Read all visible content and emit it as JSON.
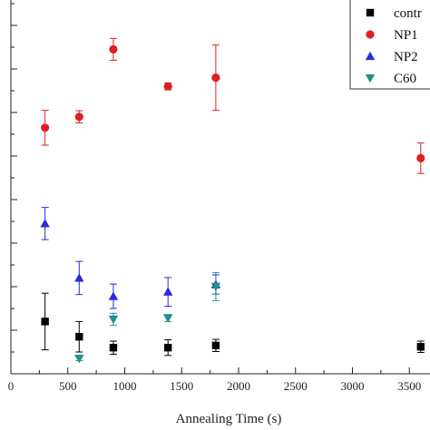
{
  "chart_data": {
    "type": "scatter",
    "xlabel": "Annealing Time (s)",
    "ylabel": "",
    "title": "",
    "xlim": [
      0,
      3650
    ],
    "x_ticks": [
      "0",
      "500",
      "1000",
      "1500",
      "2000",
      "2500",
      "3000",
      "3500"
    ],
    "x_tick_values": [
      0,
      500,
      1000,
      1500,
      2000,
      2500,
      3000,
      3500
    ],
    "y_tick_count": 9,
    "legend_position": "top-right",
    "series": [
      {
        "name": "control",
        "legend_label": "contr",
        "marker": "square",
        "color": "#000000",
        "points": [
          {
            "x": 300,
            "y": 1.2,
            "err": 0.65
          },
          {
            "x": 600,
            "y": 0.85,
            "err": 0.35
          },
          {
            "x": 900,
            "y": 0.6,
            "err": 0.15
          },
          {
            "x": 1380,
            "y": 0.6,
            "err": 0.18
          },
          {
            "x": 1800,
            "y": 0.65,
            "err": 0.14
          },
          {
            "x": 3600,
            "y": 0.62,
            "err": 0.13
          }
        ]
      },
      {
        "name": "NP1",
        "legend_label": "NP1",
        "marker": "circle",
        "color": "#e02020",
        "points": [
          {
            "x": 300,
            "y": 5.65,
            "err": 0.4
          },
          {
            "x": 600,
            "y": 5.9,
            "err": 0.14
          },
          {
            "x": 900,
            "y": 7.45,
            "err": 0.25
          },
          {
            "x": 1380,
            "y": 6.6,
            "err": 0.08
          },
          {
            "x": 1800,
            "y": 6.8,
            "err": 0.75
          },
          {
            "x": 3600,
            "y": 4.95,
            "err": 0.35
          }
        ]
      },
      {
        "name": "NP2",
        "legend_label": "NP2",
        "marker": "triangle-up",
        "color": "#2a2ad8",
        "points": [
          {
            "x": 300,
            "y": 3.45,
            "err": 0.37
          },
          {
            "x": 600,
            "y": 2.2,
            "err": 0.38
          },
          {
            "x": 900,
            "y": 1.78,
            "err": 0.28
          },
          {
            "x": 1380,
            "y": 1.88,
            "err": 0.33
          },
          {
            "x": 1800,
            "y": 2.05,
            "err": 0.22
          }
        ]
      },
      {
        "name": "C60",
        "legend_label": "C60",
        "marker": "triangle-down",
        "color": "#1f8f8f",
        "points": [
          {
            "x": 600,
            "y": 0.35,
            "err": 0.05
          },
          {
            "x": 900,
            "y": 1.25,
            "err": 0.14
          },
          {
            "x": 1380,
            "y": 1.28,
            "err": 0.08
          },
          {
            "x": 1800,
            "y": 2.0,
            "err": 0.32
          }
        ]
      }
    ]
  }
}
